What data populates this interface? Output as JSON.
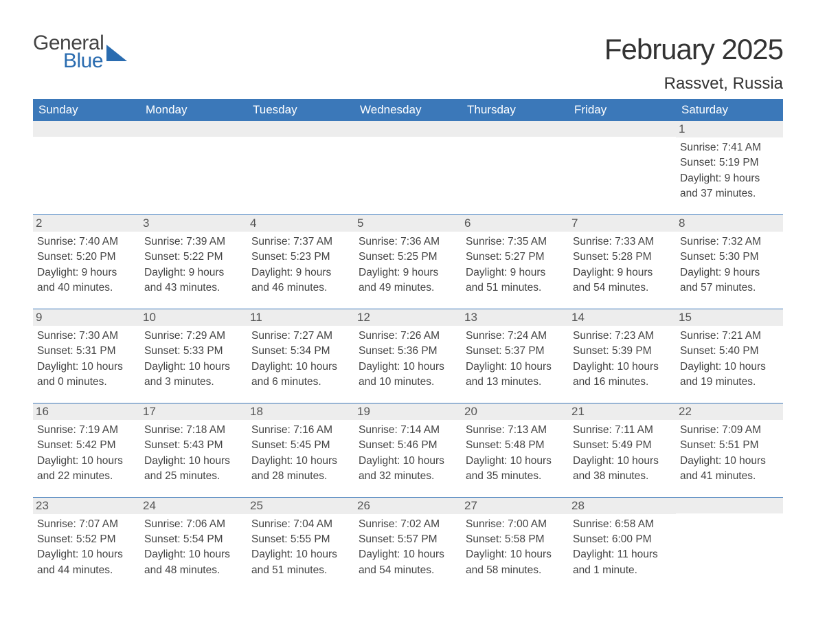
{
  "logo": {
    "text1": "General",
    "text2": "Blue",
    "flag_color": "#2a6cb0"
  },
  "title": "February 2025",
  "location": "Rassvet, Russia",
  "colors": {
    "header_bg": "#3b78b9",
    "header_text": "#ffffff",
    "daynum_bg": "#ededed",
    "daynum_text": "#555555",
    "body_text": "#444444",
    "border": "#3b78b9"
  },
  "day_headers": [
    "Sunday",
    "Monday",
    "Tuesday",
    "Wednesday",
    "Thursday",
    "Friday",
    "Saturday"
  ],
  "weeks": [
    [
      {
        "n": "",
        "sunrise": "",
        "sunset": "",
        "daylight": ""
      },
      {
        "n": "",
        "sunrise": "",
        "sunset": "",
        "daylight": ""
      },
      {
        "n": "",
        "sunrise": "",
        "sunset": "",
        "daylight": ""
      },
      {
        "n": "",
        "sunrise": "",
        "sunset": "",
        "daylight": ""
      },
      {
        "n": "",
        "sunrise": "",
        "sunset": "",
        "daylight": ""
      },
      {
        "n": "",
        "sunrise": "",
        "sunset": "",
        "daylight": ""
      },
      {
        "n": "1",
        "sunrise": "Sunrise: 7:41 AM",
        "sunset": "Sunset: 5:19 PM",
        "daylight": "Daylight: 9 hours and 37 minutes."
      }
    ],
    [
      {
        "n": "2",
        "sunrise": "Sunrise: 7:40 AM",
        "sunset": "Sunset: 5:20 PM",
        "daylight": "Daylight: 9 hours and 40 minutes."
      },
      {
        "n": "3",
        "sunrise": "Sunrise: 7:39 AM",
        "sunset": "Sunset: 5:22 PM",
        "daylight": "Daylight: 9 hours and 43 minutes."
      },
      {
        "n": "4",
        "sunrise": "Sunrise: 7:37 AM",
        "sunset": "Sunset: 5:23 PM",
        "daylight": "Daylight: 9 hours and 46 minutes."
      },
      {
        "n": "5",
        "sunrise": "Sunrise: 7:36 AM",
        "sunset": "Sunset: 5:25 PM",
        "daylight": "Daylight: 9 hours and 49 minutes."
      },
      {
        "n": "6",
        "sunrise": "Sunrise: 7:35 AM",
        "sunset": "Sunset: 5:27 PM",
        "daylight": "Daylight: 9 hours and 51 minutes."
      },
      {
        "n": "7",
        "sunrise": "Sunrise: 7:33 AM",
        "sunset": "Sunset: 5:28 PM",
        "daylight": "Daylight: 9 hours and 54 minutes."
      },
      {
        "n": "8",
        "sunrise": "Sunrise: 7:32 AM",
        "sunset": "Sunset: 5:30 PM",
        "daylight": "Daylight: 9 hours and 57 minutes."
      }
    ],
    [
      {
        "n": "9",
        "sunrise": "Sunrise: 7:30 AM",
        "sunset": "Sunset: 5:31 PM",
        "daylight": "Daylight: 10 hours and 0 minutes."
      },
      {
        "n": "10",
        "sunrise": "Sunrise: 7:29 AM",
        "sunset": "Sunset: 5:33 PM",
        "daylight": "Daylight: 10 hours and 3 minutes."
      },
      {
        "n": "11",
        "sunrise": "Sunrise: 7:27 AM",
        "sunset": "Sunset: 5:34 PM",
        "daylight": "Daylight: 10 hours and 6 minutes."
      },
      {
        "n": "12",
        "sunrise": "Sunrise: 7:26 AM",
        "sunset": "Sunset: 5:36 PM",
        "daylight": "Daylight: 10 hours and 10 minutes."
      },
      {
        "n": "13",
        "sunrise": "Sunrise: 7:24 AM",
        "sunset": "Sunset: 5:37 PM",
        "daylight": "Daylight: 10 hours and 13 minutes."
      },
      {
        "n": "14",
        "sunrise": "Sunrise: 7:23 AM",
        "sunset": "Sunset: 5:39 PM",
        "daylight": "Daylight: 10 hours and 16 minutes."
      },
      {
        "n": "15",
        "sunrise": "Sunrise: 7:21 AM",
        "sunset": "Sunset: 5:40 PM",
        "daylight": "Daylight: 10 hours and 19 minutes."
      }
    ],
    [
      {
        "n": "16",
        "sunrise": "Sunrise: 7:19 AM",
        "sunset": "Sunset: 5:42 PM",
        "daylight": "Daylight: 10 hours and 22 minutes."
      },
      {
        "n": "17",
        "sunrise": "Sunrise: 7:18 AM",
        "sunset": "Sunset: 5:43 PM",
        "daylight": "Daylight: 10 hours and 25 minutes."
      },
      {
        "n": "18",
        "sunrise": "Sunrise: 7:16 AM",
        "sunset": "Sunset: 5:45 PM",
        "daylight": "Daylight: 10 hours and 28 minutes."
      },
      {
        "n": "19",
        "sunrise": "Sunrise: 7:14 AM",
        "sunset": "Sunset: 5:46 PM",
        "daylight": "Daylight: 10 hours and 32 minutes."
      },
      {
        "n": "20",
        "sunrise": "Sunrise: 7:13 AM",
        "sunset": "Sunset: 5:48 PM",
        "daylight": "Daylight: 10 hours and 35 minutes."
      },
      {
        "n": "21",
        "sunrise": "Sunrise: 7:11 AM",
        "sunset": "Sunset: 5:49 PM",
        "daylight": "Daylight: 10 hours and 38 minutes."
      },
      {
        "n": "22",
        "sunrise": "Sunrise: 7:09 AM",
        "sunset": "Sunset: 5:51 PM",
        "daylight": "Daylight: 10 hours and 41 minutes."
      }
    ],
    [
      {
        "n": "23",
        "sunrise": "Sunrise: 7:07 AM",
        "sunset": "Sunset: 5:52 PM",
        "daylight": "Daylight: 10 hours and 44 minutes."
      },
      {
        "n": "24",
        "sunrise": "Sunrise: 7:06 AM",
        "sunset": "Sunset: 5:54 PM",
        "daylight": "Daylight: 10 hours and 48 minutes."
      },
      {
        "n": "25",
        "sunrise": "Sunrise: 7:04 AM",
        "sunset": "Sunset: 5:55 PM",
        "daylight": "Daylight: 10 hours and 51 minutes."
      },
      {
        "n": "26",
        "sunrise": "Sunrise: 7:02 AM",
        "sunset": "Sunset: 5:57 PM",
        "daylight": "Daylight: 10 hours and 54 minutes."
      },
      {
        "n": "27",
        "sunrise": "Sunrise: 7:00 AM",
        "sunset": "Sunset: 5:58 PM",
        "daylight": "Daylight: 10 hours and 58 minutes."
      },
      {
        "n": "28",
        "sunrise": "Sunrise: 6:58 AM",
        "sunset": "Sunset: 6:00 PM",
        "daylight": "Daylight: 11 hours and 1 minute."
      },
      {
        "n": "",
        "sunrise": "",
        "sunset": "",
        "daylight": ""
      }
    ]
  ]
}
